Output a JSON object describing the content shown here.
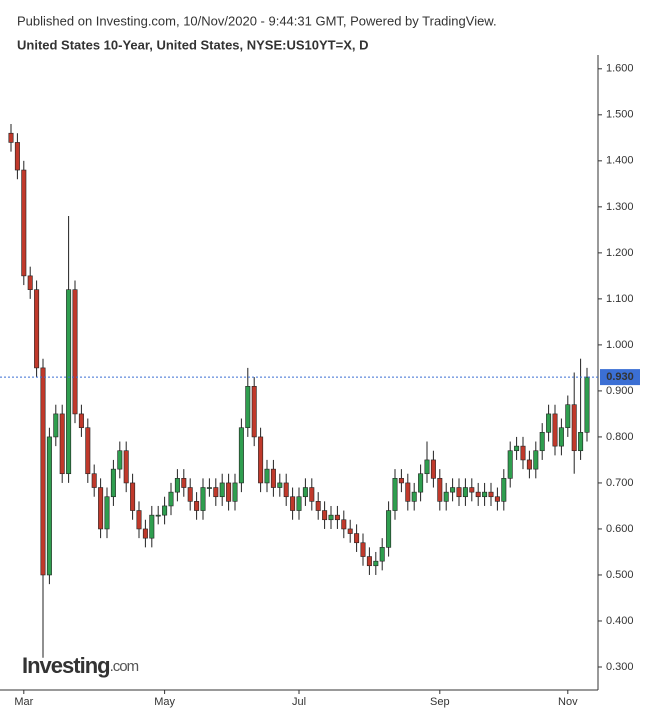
{
  "chart_data": {
    "type": "candlestick",
    "source": "Published on Investing.com, 10/Nov/2020 - 9:44:31 GMT, Powered by TradingView.",
    "title": "United States 10-Year, United States, NYSE:US10YT=X, D",
    "logo": {
      "name": "Investing",
      "suffix": ".com"
    },
    "categories": [
      null,
      null,
      "Mar",
      null,
      null,
      null,
      null,
      null,
      null,
      null,
      null,
      null,
      null,
      null,
      null,
      null,
      null,
      null,
      null,
      null,
      null,
      null,
      null,
      null,
      "May",
      null,
      null,
      null,
      null,
      null,
      null,
      null,
      null,
      null,
      null,
      null,
      null,
      null,
      null,
      null,
      null,
      null,
      null,
      null,
      null,
      "Jul",
      null,
      null,
      null,
      null,
      null,
      null,
      null,
      null,
      null,
      null,
      null,
      null,
      null,
      null,
      null,
      null,
      null,
      null,
      null,
      null,
      null,
      "Sep",
      null,
      null,
      null,
      null,
      null,
      null,
      null,
      null,
      null,
      null,
      null,
      null,
      null,
      null,
      null,
      null,
      null,
      null,
      null,
      "Nov",
      null,
      null,
      null
    ],
    "open": [
      1.46,
      1.44,
      1.38,
      1.15,
      1.12,
      0.95,
      0.5,
      0.8,
      0.85,
      0.72,
      1.12,
      0.85,
      0.82,
      0.72,
      0.69,
      0.6,
      0.67,
      0.73,
      0.77,
      0.7,
      0.64,
      0.6,
      0.58,
      0.63,
      0.63,
      0.65,
      0.68,
      0.71,
      0.69,
      0.66,
      0.64,
      0.69,
      0.69,
      0.67,
      0.7,
      0.66,
      0.7,
      0.82,
      0.91,
      0.8,
      0.7,
      0.73,
      0.69,
      0.7,
      0.67,
      0.64,
      0.67,
      0.69,
      0.66,
      0.64,
      0.62,
      0.63,
      0.62,
      0.6,
      0.59,
      0.57,
      0.54,
      0.52,
      0.53,
      0.56,
      0.64,
      0.71,
      0.7,
      0.66,
      0.68,
      0.72,
      0.75,
      0.71,
      0.66,
      0.68,
      0.69,
      0.67,
      0.69,
      0.68,
      0.67,
      0.68,
      0.67,
      0.66,
      0.71,
      0.77,
      0.78,
      0.75,
      0.73,
      0.77,
      0.81,
      0.85,
      0.78,
      0.82,
      0.87,
      0.77,
      0.81
    ],
    "high": [
      1.48,
      1.46,
      1.4,
      1.17,
      1.14,
      0.97,
      0.82,
      0.87,
      0.87,
      1.28,
      1.14,
      0.87,
      0.84,
      0.74,
      0.71,
      0.69,
      0.75,
      0.79,
      0.79,
      0.72,
      0.66,
      0.62,
      0.65,
      0.65,
      0.67,
      0.7,
      0.73,
      0.73,
      0.71,
      0.68,
      0.71,
      0.71,
      0.71,
      0.72,
      0.72,
      0.72,
      0.84,
      0.95,
      0.93,
      0.82,
      0.75,
      0.75,
      0.72,
      0.72,
      0.69,
      0.69,
      0.71,
      0.71,
      0.68,
      0.66,
      0.65,
      0.65,
      0.64,
      0.62,
      0.61,
      0.59,
      0.56,
      0.55,
      0.58,
      0.66,
      0.73,
      0.73,
      0.72,
      0.7,
      0.74,
      0.79,
      0.77,
      0.73,
      0.7,
      0.71,
      0.71,
      0.71,
      0.71,
      0.7,
      0.7,
      0.7,
      0.69,
      0.73,
      0.79,
      0.8,
      0.8,
      0.77,
      0.79,
      0.83,
      0.87,
      0.87,
      0.84,
      0.89,
      0.94,
      0.97,
      0.95
    ],
    "low": [
      1.42,
      1.36,
      1.13,
      1.1,
      0.93,
      0.32,
      0.48,
      0.78,
      0.7,
      0.7,
      0.83,
      0.8,
      0.7,
      0.67,
      0.58,
      0.58,
      0.65,
      0.71,
      0.68,
      0.62,
      0.58,
      0.56,
      0.56,
      0.61,
      0.61,
      0.63,
      0.66,
      0.67,
      0.64,
      0.62,
      0.62,
      0.67,
      0.65,
      0.65,
      0.64,
      0.64,
      0.68,
      0.8,
      0.78,
      0.68,
      0.68,
      0.67,
      0.67,
      0.65,
      0.62,
      0.62,
      0.65,
      0.64,
      0.62,
      0.6,
      0.6,
      0.6,
      0.58,
      0.57,
      0.55,
      0.52,
      0.5,
      0.5,
      0.51,
      0.54,
      0.62,
      0.68,
      0.64,
      0.64,
      0.66,
      0.7,
      0.69,
      0.64,
      0.64,
      0.66,
      0.65,
      0.65,
      0.66,
      0.65,
      0.65,
      0.65,
      0.64,
      0.64,
      0.69,
      0.75,
      0.73,
      0.71,
      0.71,
      0.75,
      0.79,
      0.76,
      0.76,
      0.8,
      0.72,
      0.75,
      0.79
    ],
    "close": [
      1.44,
      1.38,
      1.15,
      1.12,
      0.95,
      0.5,
      0.8,
      0.85,
      0.72,
      1.12,
      0.85,
      0.82,
      0.72,
      0.69,
      0.6,
      0.67,
      0.73,
      0.77,
      0.7,
      0.64,
      0.6,
      0.58,
      0.63,
      0.63,
      0.65,
      0.68,
      0.71,
      0.69,
      0.66,
      0.64,
      0.69,
      0.69,
      0.67,
      0.7,
      0.66,
      0.7,
      0.82,
      0.91,
      0.8,
      0.7,
      0.73,
      0.69,
      0.7,
      0.67,
      0.64,
      0.67,
      0.69,
      0.66,
      0.64,
      0.62,
      0.63,
      0.62,
      0.6,
      0.59,
      0.57,
      0.54,
      0.52,
      0.53,
      0.56,
      0.64,
      0.71,
      0.7,
      0.66,
      0.68,
      0.72,
      0.75,
      0.71,
      0.66,
      0.68,
      0.69,
      0.67,
      0.69,
      0.68,
      0.67,
      0.68,
      0.67,
      0.66,
      0.71,
      0.77,
      0.78,
      0.75,
      0.73,
      0.77,
      0.81,
      0.85,
      0.78,
      0.82,
      0.87,
      0.77,
      0.81,
      0.93
    ],
    "up_color": "#2f9e4f",
    "down_color": "#c0392b",
    "ylim": [
      0.25,
      1.63
    ],
    "yticks": [
      {
        "value": 0.3,
        "label": "0.300"
      },
      {
        "value": 0.4,
        "label": "0.400"
      },
      {
        "value": 0.5,
        "label": "0.500"
      },
      {
        "value": 0.6,
        "label": "0.600"
      },
      {
        "value": 0.7,
        "label": "0.700"
      },
      {
        "value": 0.8,
        "label": "0.800"
      },
      {
        "value": 0.9,
        "label": "0.900"
      },
      {
        "value": 1.0,
        "label": "1.000"
      },
      {
        "value": 1.1,
        "label": "1.100"
      },
      {
        "value": 1.2,
        "label": "1.200"
      },
      {
        "value": 1.3,
        "label": "1.300"
      },
      {
        "value": 1.4,
        "label": "1.400"
      },
      {
        "value": 1.5,
        "label": "1.500"
      },
      {
        "value": 1.6,
        "label": "1.600"
      }
    ],
    "last_price": {
      "value": 0.93,
      "label": "0.930",
      "color": "#3b6fd4"
    }
  }
}
